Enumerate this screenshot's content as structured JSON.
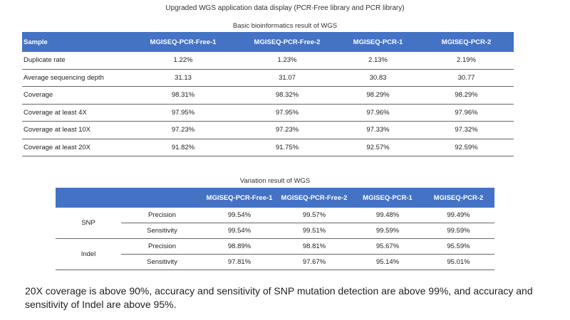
{
  "title": "Upgraded WGS application data display (PCR-Free library and PCR library)",
  "basic": {
    "caption": "Basic bioinformatics result of WGS",
    "headers": [
      "Sample",
      "MGISEQ-PCR-Free-1",
      "MGISEQ-PCR-Free-2",
      "MGISEQ-PCR-1",
      "MGISEQ-PCR-2"
    ],
    "rows": [
      [
        "Duplicate rate",
        "1.22%",
        "1.23%",
        "2.13%",
        "2.19%"
      ],
      [
        "Average sequencing depth",
        "31.13",
        "31.07",
        "30.83",
        "30.77"
      ],
      [
        "Coverage",
        "98.31%",
        "98.32%",
        "98.29%",
        "98.29%"
      ],
      [
        "Coverage at least 4X",
        "97.95%",
        "97.95%",
        "97.96%",
        "97.96%"
      ],
      [
        "Coverage at least 10X",
        "97.23%",
        "97.23%",
        "97.33%",
        "97.32%"
      ],
      [
        "Coverage at least 20X",
        "91.82%",
        "91.75%",
        "92.57%",
        "92.59%"
      ]
    ]
  },
  "variation": {
    "caption": "Variation result of WGS",
    "headers": [
      "",
      "",
      "MGISEQ-PCR-Free-1",
      "MGISEQ-PCR-Free-2",
      "MGISEQ-PCR-1",
      "MGISEQ-PCR-2"
    ],
    "groups": [
      {
        "name": "SNP",
        "rows": [
          {
            "metric": "Precision",
            "values": [
              "99.54%",
              "99.57%",
              "99.48%",
              "99.49%"
            ]
          },
          {
            "metric": "Sensitivity",
            "values": [
              "99.54%",
              "99.51%",
              "99.59%",
              "99.59%"
            ]
          }
        ]
      },
      {
        "name": "Indel",
        "rows": [
          {
            "metric": "Precision",
            "values": [
              "98.89%",
              "98.81%",
              "95.67%",
              "95.59%"
            ]
          },
          {
            "metric": "Sensitivity",
            "values": [
              "97.81%",
              "97.67%",
              "95.14%",
              "95.01%"
            ]
          }
        ]
      }
    ]
  },
  "conclusion": "20X coverage is above 90%, accuracy and sensitivity of SNP mutation detection are above 99%, and accuracy and sensitivity of Indel are above 95%."
}
